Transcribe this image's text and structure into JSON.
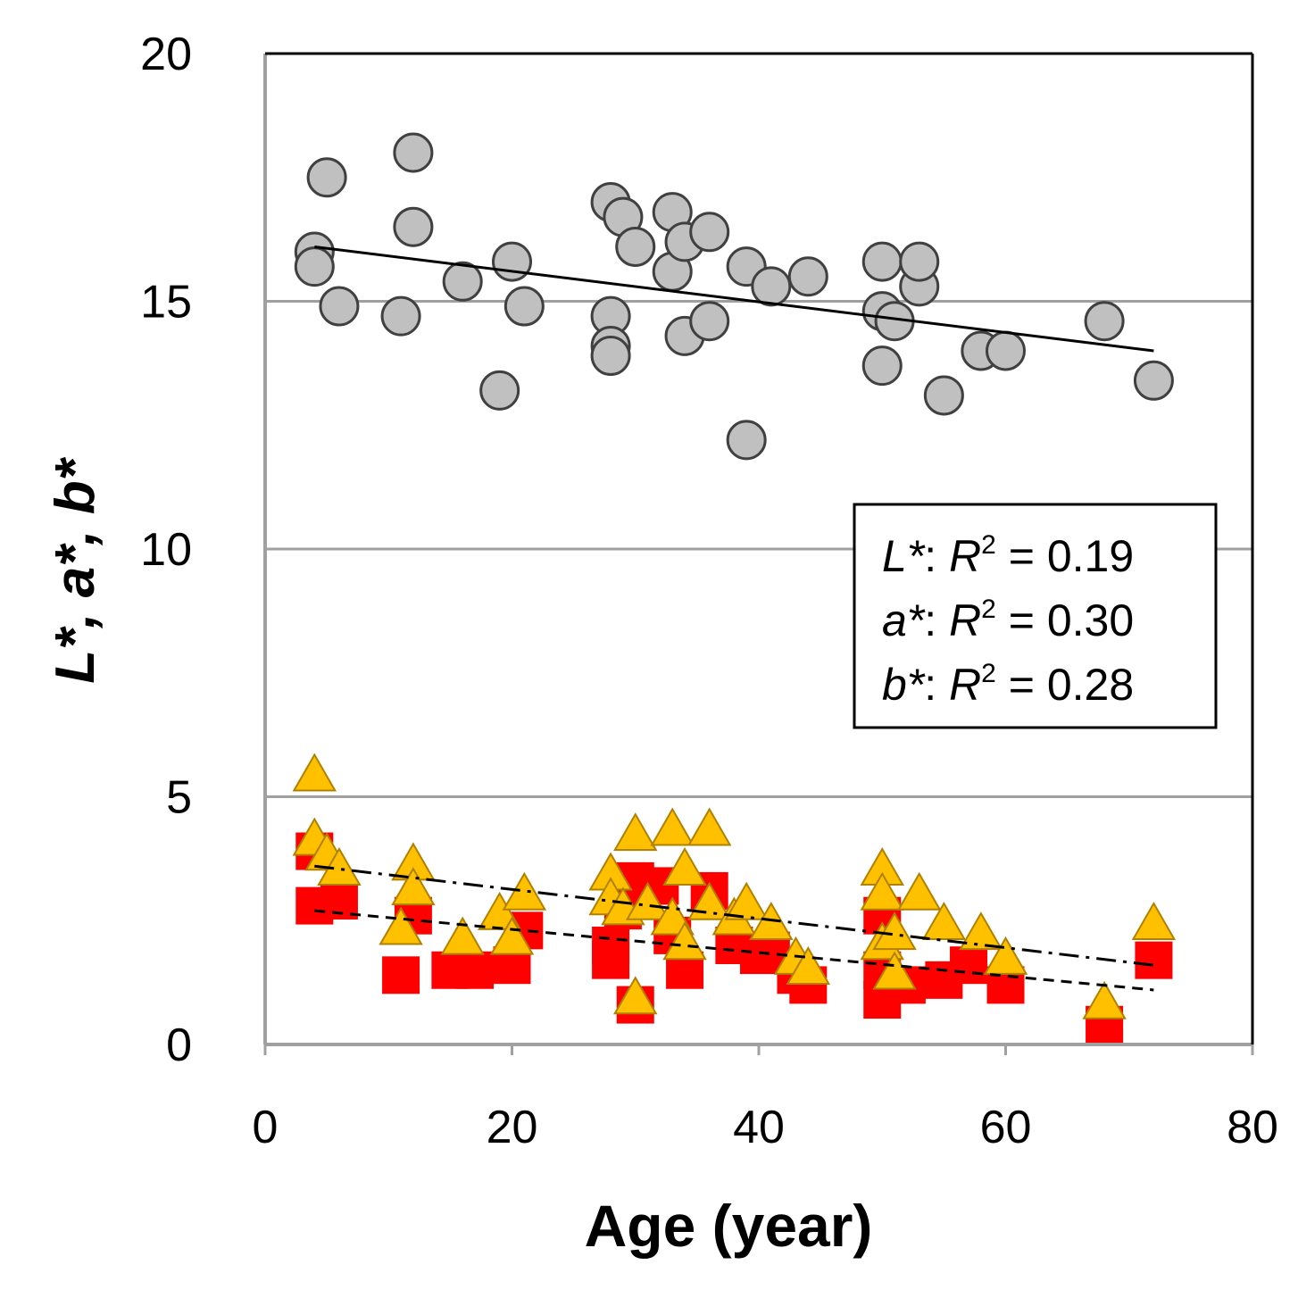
{
  "chart_data": {
    "type": "scatter",
    "xlabel": "Age (year)",
    "ylabel": "L*, a*, b*",
    "xlim": [
      0,
      80
    ],
    "ylim": [
      0,
      20
    ],
    "x_ticks": [
      "0",
      "20",
      "40",
      "60",
      "80"
    ],
    "y_ticks": [
      "0",
      "5",
      "10",
      "15",
      "20"
    ],
    "grid": "horizontal",
    "colors": {
      "L": "#c0c0c0",
      "a": "#ff0000",
      "b": "#ffc000",
      "outline": "#404040",
      "grid": "#a0a0a0"
    },
    "series": [
      {
        "name": "L*",
        "marker": "circle",
        "points": [
          [
            4,
            16.0
          ],
          [
            4,
            15.7
          ],
          [
            5,
            17.5
          ],
          [
            6,
            14.9
          ],
          [
            11,
            14.7
          ],
          [
            12,
            18.0
          ],
          [
            12,
            16.5
          ],
          [
            16,
            15.4
          ],
          [
            19,
            13.2
          ],
          [
            20,
            15.8
          ],
          [
            21,
            14.9
          ],
          [
            28,
            17.0
          ],
          [
            28,
            14.7
          ],
          [
            28,
            14.1
          ],
          [
            28,
            13.9
          ],
          [
            29,
            16.7
          ],
          [
            30,
            16.1
          ],
          [
            33,
            16.8
          ],
          [
            33,
            15.6
          ],
          [
            34,
            16.2
          ],
          [
            34,
            14.3
          ],
          [
            36,
            16.4
          ],
          [
            36,
            14.6
          ],
          [
            39,
            15.7
          ],
          [
            39,
            12.2
          ],
          [
            41,
            15.3
          ],
          [
            44,
            15.5
          ],
          [
            50,
            15.8
          ],
          [
            50,
            14.8
          ],
          [
            50,
            13.7
          ],
          [
            51,
            14.6
          ],
          [
            53,
            15.3
          ],
          [
            53,
            15.8
          ],
          [
            55,
            13.1
          ],
          [
            58,
            14.0
          ],
          [
            60,
            14.0
          ],
          [
            68,
            14.6
          ],
          [
            72,
            13.4
          ]
        ]
      },
      {
        "name": "a*",
        "marker": "square",
        "points": [
          [
            4,
            3.9
          ],
          [
            4,
            2.8
          ],
          [
            6,
            2.9
          ],
          [
            11,
            1.4
          ],
          [
            12,
            2.6
          ],
          [
            15,
            1.5
          ],
          [
            17,
            1.5
          ],
          [
            20,
            1.6
          ],
          [
            21,
            2.3
          ],
          [
            28,
            2.0
          ],
          [
            28,
            1.7
          ],
          [
            29,
            2.7
          ],
          [
            30,
            3.3
          ],
          [
            30,
            0.8
          ],
          [
            32,
            3.2
          ],
          [
            33,
            2.2
          ],
          [
            34,
            1.5
          ],
          [
            36,
            3.1
          ],
          [
            38,
            2.0
          ],
          [
            40,
            1.8
          ],
          [
            41,
            1.9
          ],
          [
            43,
            1.4
          ],
          [
            44,
            1.2
          ],
          [
            50,
            2.6
          ],
          [
            50,
            1.5
          ],
          [
            50,
            0.9
          ],
          [
            52,
            1.2
          ],
          [
            55,
            1.3
          ],
          [
            57,
            1.6
          ],
          [
            60,
            1.2
          ],
          [
            68,
            0.4
          ],
          [
            72,
            1.7
          ]
        ]
      },
      {
        "name": "b*",
        "marker": "triangle",
        "points": [
          [
            4,
            5.4
          ],
          [
            4,
            4.1
          ],
          [
            5,
            3.8
          ],
          [
            6,
            3.5
          ],
          [
            11,
            2.3
          ],
          [
            12,
            3.6
          ],
          [
            12,
            3.1
          ],
          [
            16,
            2.1
          ],
          [
            19,
            2.6
          ],
          [
            20,
            2.1
          ],
          [
            21,
            3.0
          ],
          [
            28,
            3.4
          ],
          [
            28,
            2.9
          ],
          [
            29,
            2.7
          ],
          [
            30,
            4.2
          ],
          [
            30,
            0.9
          ],
          [
            31,
            2.8
          ],
          [
            33,
            4.3
          ],
          [
            33,
            2.5
          ],
          [
            34,
            3.5
          ],
          [
            34,
            2.0
          ],
          [
            36,
            4.3
          ],
          [
            36,
            2.8
          ],
          [
            38,
            2.5
          ],
          [
            39,
            2.8
          ],
          [
            41,
            2.4
          ],
          [
            43,
            1.7
          ],
          [
            44,
            1.5
          ],
          [
            50,
            3.5
          ],
          [
            50,
            3.0
          ],
          [
            50,
            2.0
          ],
          [
            51,
            1.4
          ],
          [
            51,
            2.2
          ],
          [
            53,
            3.0
          ],
          [
            55,
            2.4
          ],
          [
            58,
            2.2
          ],
          [
            60,
            1.7
          ],
          [
            68,
            0.8
          ],
          [
            72,
            2.4
          ]
        ]
      }
    ],
    "trendlines": [
      {
        "series": "L*",
        "style": "solid",
        "x": [
          4,
          72
        ],
        "y": [
          16.1,
          14.0
        ]
      },
      {
        "series": "b*",
        "style": "dash-dot",
        "x": [
          4,
          72
        ],
        "y": [
          3.6,
          1.6
        ]
      },
      {
        "series": "a*",
        "style": "dashed",
        "x": [
          4,
          72
        ],
        "y": [
          2.7,
          1.1
        ]
      }
    ],
    "annotation": [
      {
        "var": "L*",
        "r2_label": "R",
        "r2_sup": "2",
        "value": " = 0.19"
      },
      {
        "var": "a*",
        "r2_label": "R",
        "r2_sup": "2",
        "value": " = 0.30"
      },
      {
        "var": "b*",
        "r2_label": "R",
        "r2_sup": "2",
        "value": " = 0.28"
      }
    ]
  }
}
